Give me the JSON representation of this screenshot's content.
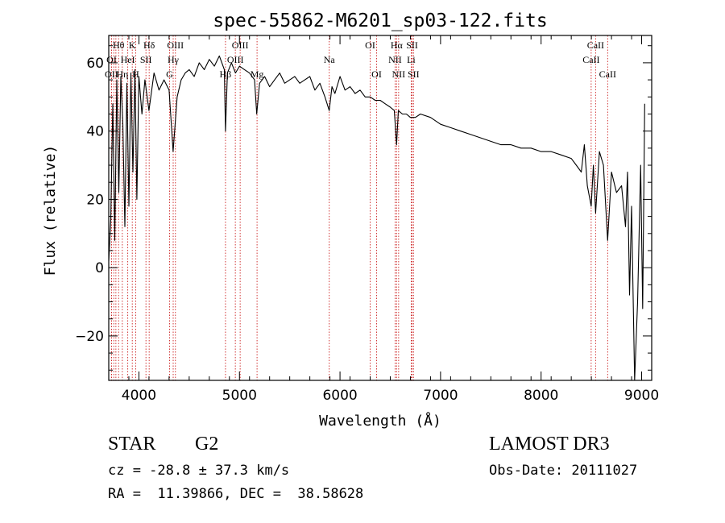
{
  "chart_data": {
    "type": "line",
    "title": "spec-55862-M6201_sp03-122.fits",
    "xlabel": "Wavelength (Å)",
    "ylabel": "Flux (relative)",
    "xlim": [
      3700,
      9100
    ],
    "ylim": [
      -33,
      68
    ],
    "xticks": [
      4000,
      5000,
      6000,
      7000,
      8000,
      9000
    ],
    "yticks": [
      -20,
      0,
      20,
      40,
      60
    ],
    "minor_xtick_step": 200,
    "minor_ytick_step": 5,
    "series": [
      {
        "name": "flux",
        "x": [
          3700,
          3720,
          3740,
          3760,
          3780,
          3800,
          3820,
          3840,
          3860,
          3880,
          3900,
          3920,
          3940,
          3960,
          3980,
          4000,
          4030,
          4060,
          4100,
          4150,
          4200,
          4250,
          4300,
          4340,
          4380,
          4420,
          4460,
          4500,
          4550,
          4600,
          4650,
          4700,
          4750,
          4800,
          4850,
          4861,
          4880,
          4920,
          4960,
          5000,
          5050,
          5100,
          5150,
          5172,
          5200,
          5250,
          5300,
          5350,
          5400,
          5450,
          5500,
          5550,
          5600,
          5650,
          5700,
          5750,
          5800,
          5850,
          5893,
          5920,
          5950,
          6000,
          6050,
          6100,
          6150,
          6200,
          6250,
          6300,
          6350,
          6400,
          6450,
          6500,
          6540,
          6563,
          6580,
          6620,
          6660,
          6700,
          6750,
          6800,
          6900,
          7000,
          7100,
          7200,
          7300,
          7400,
          7500,
          7600,
          7700,
          7800,
          7900,
          8000,
          8100,
          8200,
          8300,
          8350,
          8400,
          8430,
          8460,
          8498,
          8520,
          8542,
          8580,
          8620,
          8662,
          8700,
          8750,
          8800,
          8840,
          8860,
          8880,
          8900,
          8930,
          8960,
          8990,
          9010,
          9030
        ],
        "values": [
          2,
          14,
          48,
          8,
          55,
          22,
          56,
          42,
          12,
          54,
          18,
          57,
          28,
          58,
          20,
          56,
          45,
          55,
          46,
          57,
          52,
          55,
          52,
          34,
          50,
          55,
          57,
          58,
          56,
          60,
          58,
          61,
          59,
          62,
          58,
          40,
          57,
          60,
          57,
          59,
          58,
          57,
          55,
          45,
          54,
          56,
          53,
          55,
          57,
          54,
          55,
          56,
          54,
          55,
          56,
          52,
          54,
          50,
          46,
          53,
          51,
          56,
          52,
          53,
          51,
          52,
          50,
          50,
          49,
          49,
          48,
          47,
          46,
          36,
          46,
          45,
          45,
          44,
          44,
          45,
          44,
          42,
          41,
          40,
          39,
          38,
          37,
          36,
          36,
          35,
          35,
          34,
          34,
          33,
          32,
          30,
          28,
          36,
          24,
          18,
          30,
          16,
          34,
          30,
          8,
          28,
          22,
          24,
          12,
          28,
          -8,
          18,
          -33,
          -10,
          30,
          -12,
          48
        ],
        "color": "#000000"
      }
    ],
    "annotations": [
      {
        "label": "Hθ",
        "x": 3798,
        "row": 0
      },
      {
        "label": "K",
        "x": 3934,
        "row": 0
      },
      {
        "label": "Hδ",
        "x": 4102,
        "row": 0
      },
      {
        "label": "OIII",
        "x": 4363,
        "row": 0
      },
      {
        "label": "OIII",
        "x": 5007,
        "row": 0
      },
      {
        "label": "OI",
        "x": 6300,
        "row": 0
      },
      {
        "label": "Hα",
        "x": 6563,
        "row": 0
      },
      {
        "label": "SII",
        "x": 6717,
        "row": 0
      },
      {
        "label": "CaII",
        "x": 8542,
        "row": 0
      },
      {
        "label": "OI",
        "x": 3728,
        "row": 1
      },
      {
        "label": "HeI",
        "x": 3889,
        "row": 1
      },
      {
        "label": "SII",
        "x": 4070,
        "row": 1
      },
      {
        "label": "Hγ",
        "x": 4341,
        "row": 1
      },
      {
        "label": "OIII",
        "x": 4959,
        "row": 1
      },
      {
        "label": "Na",
        "x": 5893,
        "row": 1
      },
      {
        "label": "NII",
        "x": 6548,
        "row": 1
      },
      {
        "label": "Li",
        "x": 6708,
        "row": 1
      },
      {
        "label": "CaII",
        "x": 8498,
        "row": 1
      },
      {
        "label": "OII",
        "x": 3727,
        "row": 2
      },
      {
        "label": "Hη",
        "x": 3835,
        "row": 2
      },
      {
        "label": "H",
        "x": 3968,
        "row": 2
      },
      {
        "label": "G",
        "x": 4305,
        "row": 2
      },
      {
        "label": "Hβ",
        "x": 4861,
        "row": 2
      },
      {
        "label": "Mg",
        "x": 5175,
        "row": 2
      },
      {
        "label": "OI",
        "x": 6364,
        "row": 2
      },
      {
        "label": "NII",
        "x": 6583,
        "row": 2
      },
      {
        "label": "SII",
        "x": 6731,
        "row": 2
      },
      {
        "label": "CaII",
        "x": 8662,
        "row": 2
      }
    ],
    "line_markers": [
      3727,
      3728,
      3750,
      3771,
      3798,
      3835,
      3889,
      3934,
      3968,
      4070,
      4102,
      4305,
      4341,
      4363,
      4861,
      4959,
      5007,
      5175,
      5893,
      6300,
      6364,
      6548,
      6563,
      6583,
      6708,
      6717,
      6731,
      8498,
      8542,
      8662
    ],
    "marker_color": "#cc2222",
    "axis_color": "#000000"
  },
  "info": {
    "object_class": "STAR",
    "subclass": "G2",
    "survey": "LAMOST DR3",
    "redshift": "cz = -28.8 ± 37.3 km/s",
    "obs_date": "Obs-Date: 20111027",
    "coordinates": "RA =  11.39866, DEC =  38.58628"
  }
}
